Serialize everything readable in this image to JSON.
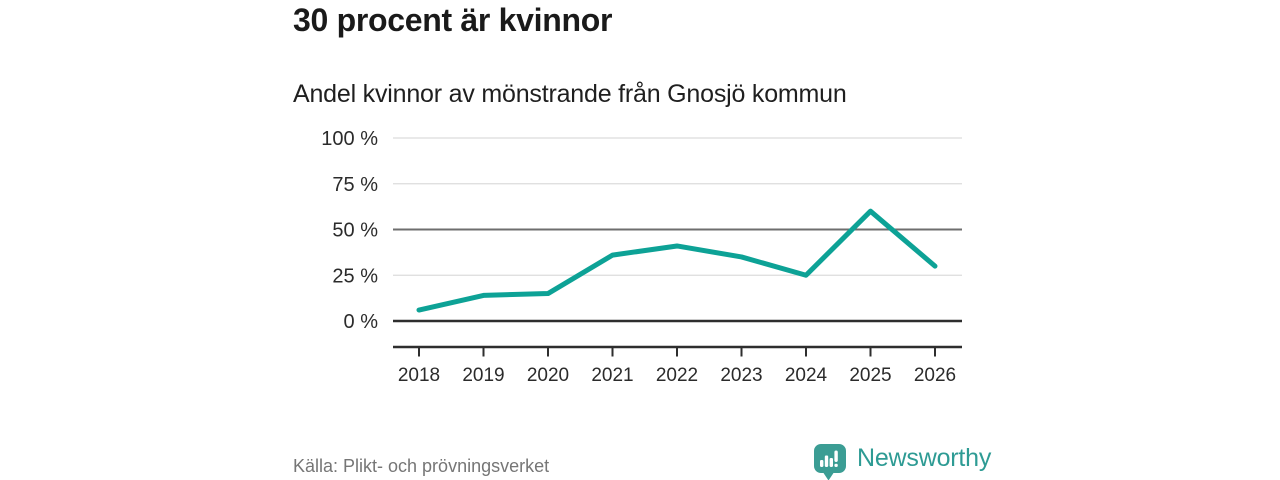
{
  "header": {
    "title": "30 procent är kvinnor",
    "subtitle": "Andel kvinnor av mönstrande från Gnosjö kommun"
  },
  "chart_data": {
    "type": "line",
    "title": "30 procent är kvinnor",
    "subtitle": "Andel kvinnor av mönstrande från Gnosjö kommun",
    "categories": [
      "2018",
      "2019",
      "2020",
      "2021",
      "2022",
      "2023",
      "2024",
      "2025",
      "2026"
    ],
    "series": [
      {
        "name": "Andel kvinnor av mönstrande",
        "values": [
          6,
          14,
          15,
          36,
          41,
          35,
          25,
          60,
          30
        ]
      }
    ],
    "unit": "%",
    "ylim": [
      0,
      100
    ],
    "yticks": [
      {
        "label": "0 %",
        "value": 0,
        "emphasis": "zero"
      },
      {
        "label": "25 %",
        "value": 25,
        "emphasis": "light"
      },
      {
        "label": "50 %",
        "value": 50,
        "emphasis": "medium"
      },
      {
        "label": "75 %",
        "value": 75,
        "emphasis": "light"
      },
      {
        "label": "100 %",
        "value": 100,
        "emphasis": "light"
      }
    ],
    "grid": "horizontal",
    "legend": "none",
    "colors": {
      "line": "#0DA296",
      "grid_light": "#DCDCDC",
      "grid_medium": "#6E6E6E",
      "axis": "#2E2E2E",
      "tick_text": "#2B2B2B"
    }
  },
  "footer": {
    "source": "Källa: Plikt- och prövningsverket",
    "brand": "Newsworthy",
    "brand_color": "#2E9B94",
    "logo_color": "#3B9D94"
  }
}
